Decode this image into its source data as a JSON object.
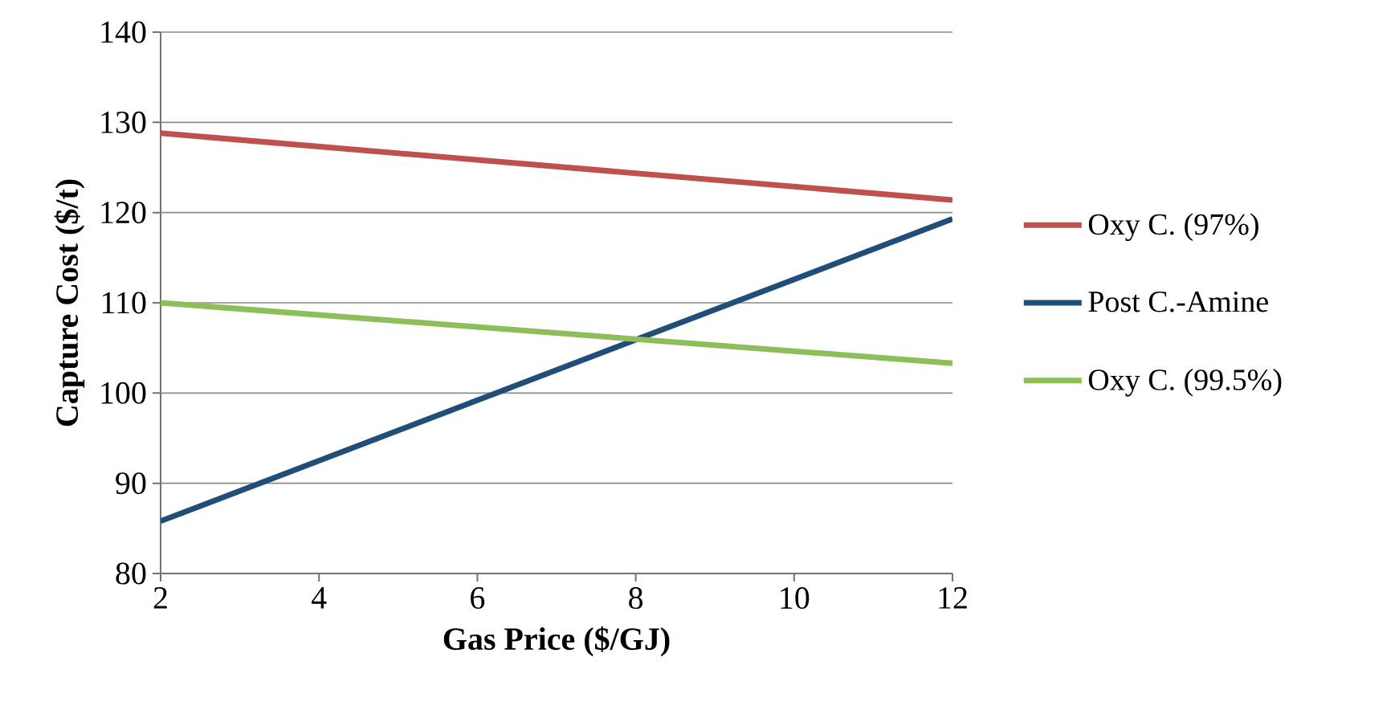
{
  "chart_data": {
    "type": "line",
    "xlabel": "Gas Price ($/GJ)",
    "ylabel": "Capture Cost ($/t)",
    "x": [
      2,
      12
    ],
    "series": [
      {
        "name": "Oxy C. (97%)",
        "color": "#c0504d",
        "values": [
          128.8,
          121.4
        ]
      },
      {
        "name": "Post C.-Amine",
        "color": "#1f4e79",
        "values": [
          85.8,
          119.3
        ]
      },
      {
        "name": "Oxy C. (99.5%)",
        "color": "#8cbf5a",
        "values": [
          110,
          103.3
        ]
      }
    ],
    "xlim": [
      2,
      12
    ],
    "ylim": [
      80,
      140
    ],
    "xticks": [
      2,
      4,
      6,
      8,
      10,
      12
    ],
    "yticks": [
      80,
      90,
      100,
      110,
      120,
      130,
      140
    ],
    "grid": "y",
    "legend": "right"
  }
}
